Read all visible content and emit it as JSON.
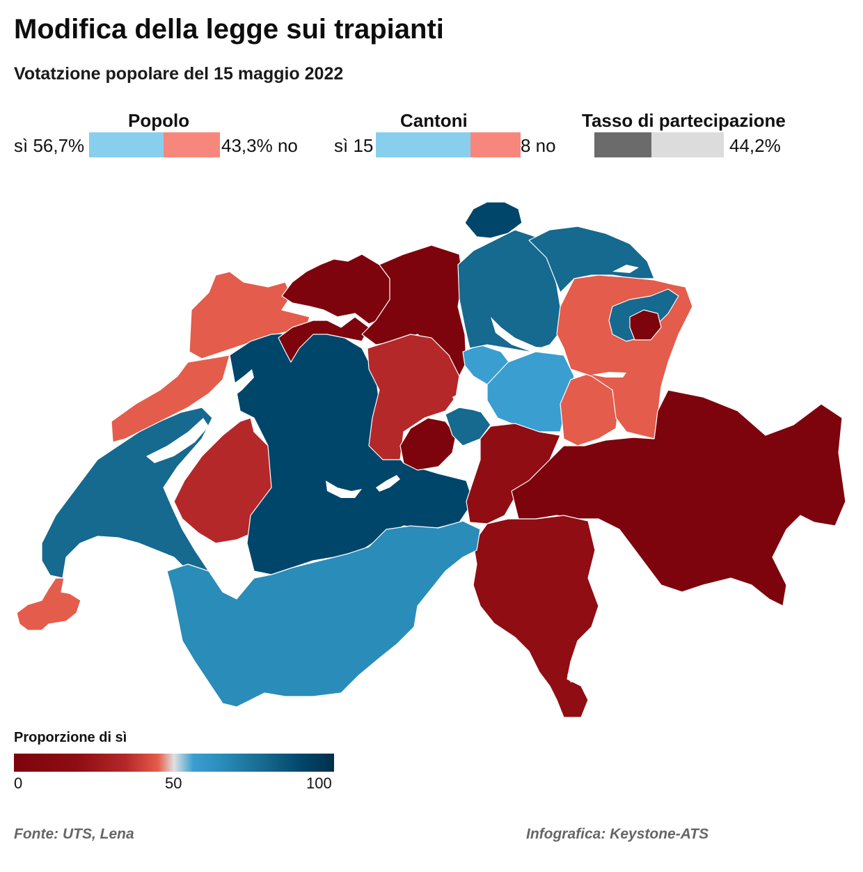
{
  "title": "Modifica della legge sui trapianti",
  "subtitle": "Votatzione popolare del 15 maggio 2022",
  "popolo": {
    "label": "Popolo",
    "yes_text": "sì 56,7%",
    "no_text": "43,3% no",
    "yes_share": 56.7,
    "no_share": 43.3
  },
  "cantoni": {
    "label": "Cantoni",
    "yes_text": "sì 15",
    "no_text": "8 no",
    "yes_count": 15,
    "no_count": 8
  },
  "partecipazione": {
    "label": "Tasso di partecipazione",
    "value_text": "44,2%",
    "value": 44.2
  },
  "colors": {
    "yes_bar": "#88cfee",
    "no_bar": "#f7877c",
    "turnout_fill": "#6b6b6b",
    "turnout_rest": "#dcdcdc",
    "very_low": "#7d040c",
    "low": "#8f0d13",
    "mid_low": "#b5282a",
    "near_low": "#e45c4b",
    "near_high": "#3a9ed0",
    "mid_high": "#2a8cb8",
    "high": "#16698f",
    "very_high": "#00466a"
  },
  "legend": {
    "title": "Proporzione di sì",
    "ticks": [
      "0",
      "50",
      "100"
    ]
  },
  "footer": {
    "source": "Fonte: UTS, Lena",
    "credit": "Infografica: Keystone-ATS"
  }
}
